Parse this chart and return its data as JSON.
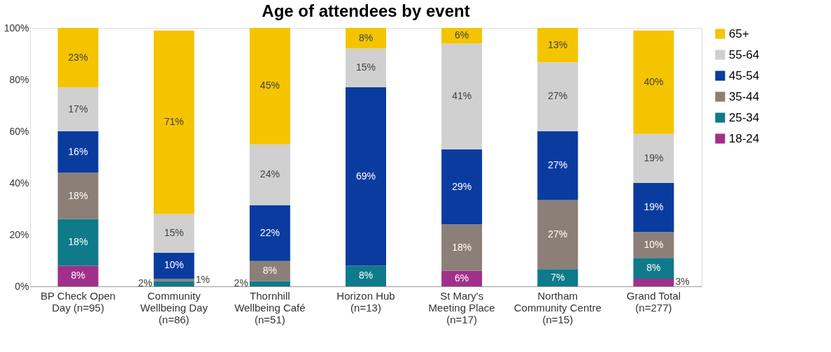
{
  "chart_data": {
    "type": "bar",
    "title": "Age of attendees by event",
    "stacked": true,
    "categories": [
      "BP Check Open Day (n=95)",
      "Community Wellbeing Day (n=86)",
      "Thornhill Wellbeing Café (n=51)",
      "Horizon Hub (n=13)",
      "St Mary's Meeting Place (n=17)",
      "Northam Community Centre (n=15)",
      "Grand Total (n=277)"
    ],
    "series": [
      {
        "name": "18-24",
        "color": "#a0308a",
        "values": [
          8,
          null,
          null,
          null,
          6,
          null,
          3
        ],
        "value_labels": [
          "8%",
          null,
          null,
          null,
          "6%",
          null,
          "3%"
        ]
      },
      {
        "name": "25-34",
        "color": "#0e7a8a",
        "values": [
          18,
          2,
          2.0,
          8,
          null,
          6.7,
          8
        ],
        "value_labels": [
          "18%",
          "2%",
          "2%",
          "8%",
          null,
          "7%",
          "8%"
        ]
      },
      {
        "name": "35-44",
        "color": "#8c7f78",
        "values": [
          18,
          1,
          7.8,
          null,
          18,
          26.7,
          10
        ],
        "value_labels": [
          "18%",
          "1%",
          "8%",
          null,
          "18%",
          "27%",
          "10%"
        ]
      },
      {
        "name": "45-54",
        "color": "#0a3ca0",
        "values": [
          16,
          10,
          21.6,
          69,
          29,
          26.7,
          19
        ],
        "value_labels": [
          "16%",
          "10%",
          "22%",
          "69%",
          "29%",
          "27%",
          "19%"
        ]
      },
      {
        "name": "55-64",
        "color": "#d0d0d0",
        "values": [
          17,
          15,
          23.5,
          15,
          41,
          26.6,
          19
        ],
        "value_labels": [
          "17%",
          "15%",
          "24%",
          "15%",
          "41%",
          "27%",
          "19%"
        ]
      },
      {
        "name": "65+",
        "color": "#f5c400",
        "values": [
          23,
          71,
          45.1,
          8,
          6,
          13.3,
          40
        ],
        "value_labels": [
          "23%",
          "71%",
          "45%",
          "8%",
          "6%",
          "13%",
          "40%"
        ]
      }
    ],
    "ylim": [
      0,
      100
    ],
    "yticks": [
      {
        "value": 0,
        "label": "0%"
      },
      {
        "value": 20,
        "label": "20%"
      },
      {
        "value": 40,
        "label": "40%"
      },
      {
        "value": 60,
        "label": "60%"
      },
      {
        "value": 80,
        "label": "80%"
      },
      {
        "value": 100,
        "label": "100%"
      }
    ],
    "legend": "right"
  }
}
